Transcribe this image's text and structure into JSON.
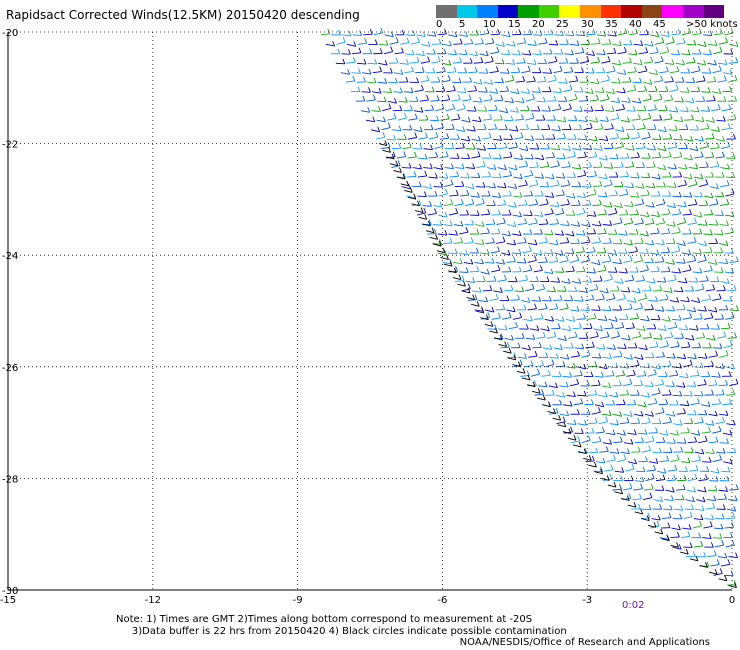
{
  "header": {
    "title": "Rapidsact Corrected Winds(12.5KM) 20150420 descending"
  },
  "colorbar": {
    "colors": [
      "#707070",
      "#00c8e8",
      "#0080ff",
      "#0000c8",
      "#00a000",
      "#40d000",
      "#ffff00",
      "#ff9000",
      "#ff3000",
      "#b00000",
      "#8b4513",
      "#ff00ff",
      "#a000c8",
      "#600080"
    ],
    "labels": [
      "0",
      "5",
      "10",
      "15",
      "20",
      "25",
      "30",
      "35",
      "40",
      "45",
      ">50 knots"
    ]
  },
  "chart_data": {
    "type": "scatter",
    "title": "Rapidsact Corrected Winds(12.5KM) 20150420 descending",
    "xlim": [
      -15,
      0
    ],
    "ylim": [
      -30,
      -20
    ],
    "x_ticks": [
      "-15",
      "-12",
      "-9",
      "-6",
      "-3",
      "0"
    ],
    "y_ticks": [
      "-20",
      "-22",
      "-24",
      "-26",
      "-28",
      "-30"
    ],
    "grid": true,
    "swath_edge": [
      [
        -8.6,
        -20
      ],
      [
        -7.5,
        -21.8
      ],
      [
        -6.0,
        -24.2
      ],
      [
        -4.5,
        -26.1
      ],
      [
        -3.0,
        -27.8
      ],
      [
        -1.5,
        -29.1
      ],
      [
        0,
        -30
      ]
    ],
    "units": "knots",
    "dominant_speed_ranges": [
      "10-15",
      "15-20",
      "20-25"
    ]
  },
  "footer": {
    "timestamp": "0:02",
    "note_line1": "Note: 1) Times are GMT 2)Times along bottom correspond to measurement at -20S",
    "note_line2": "3)Data buffer is 22 hrs from 20150420 4) Black circles indicate possible contamination",
    "credit": "NOAA/NESDIS/Office of Research and Applications"
  }
}
